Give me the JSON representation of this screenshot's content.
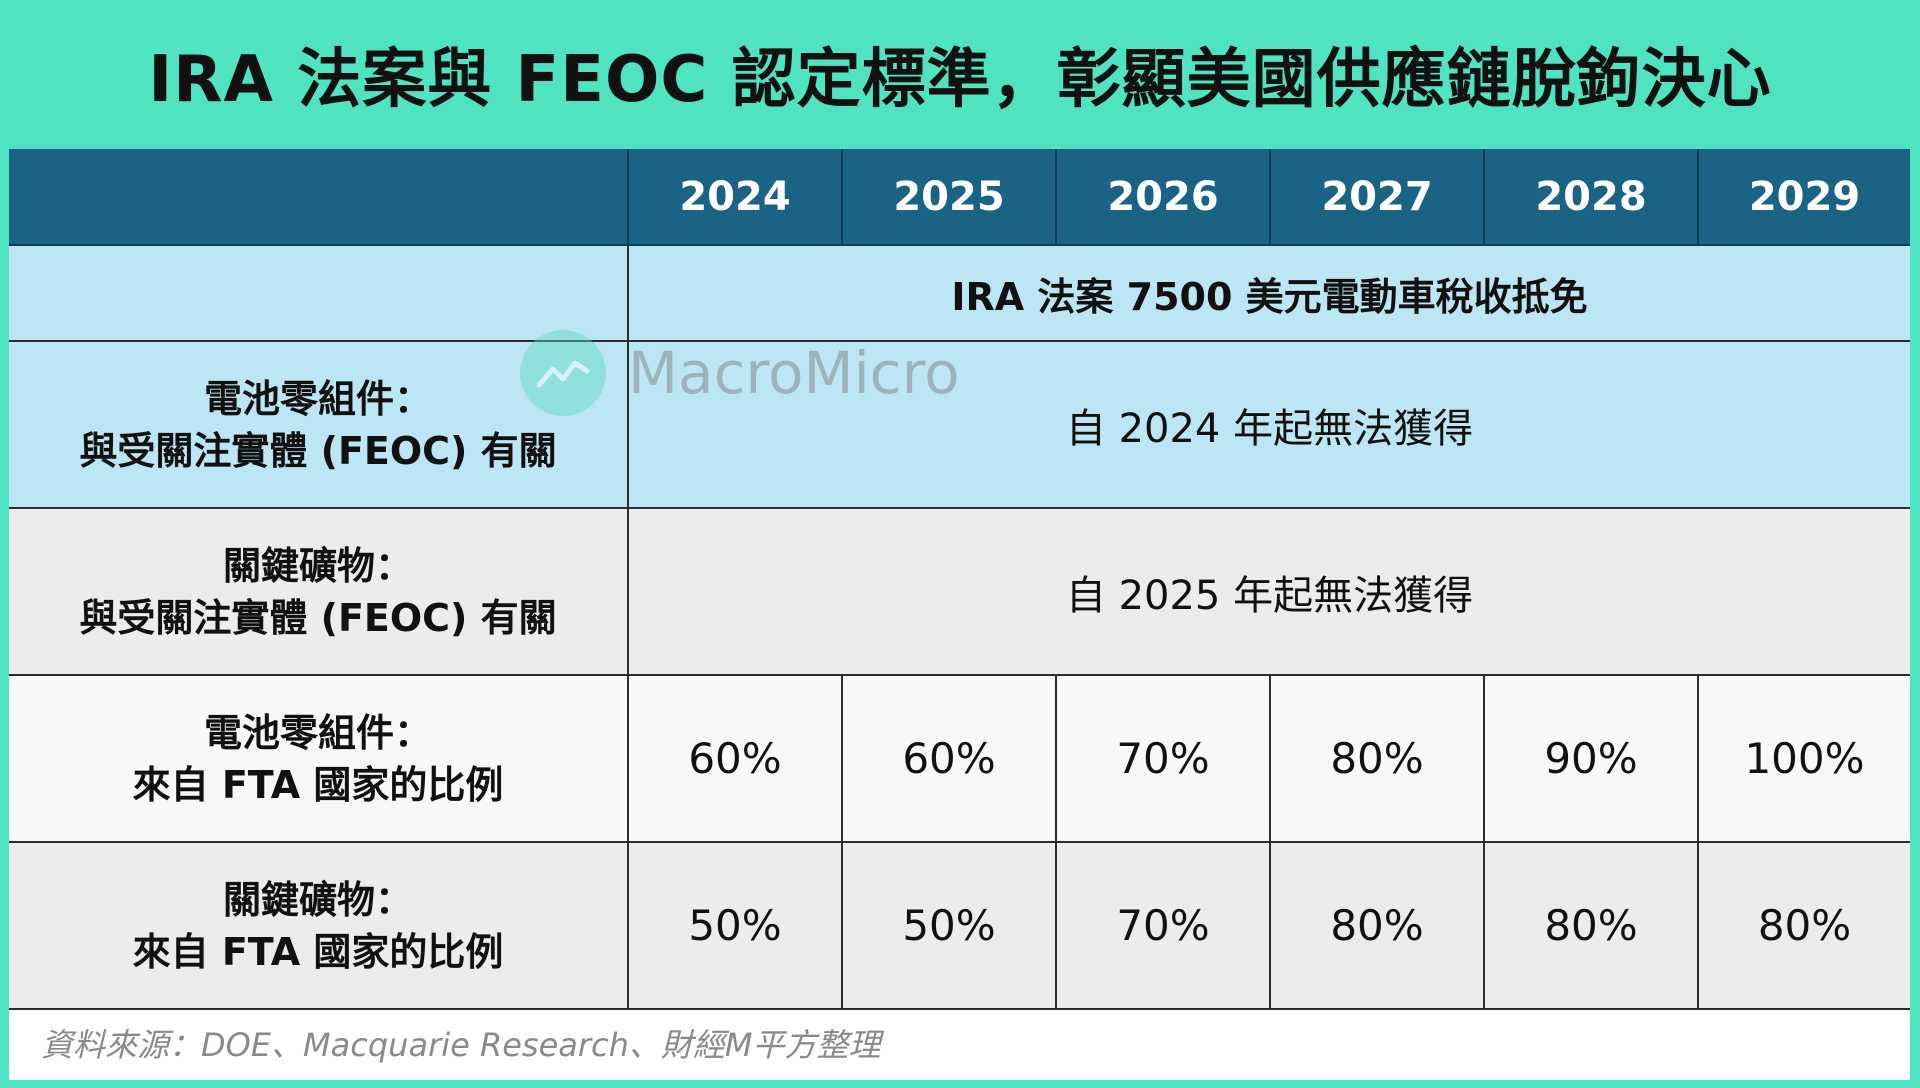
{
  "title": "IRA 法案與 FEOC 認定標準，彰顯美國供應鏈脫鉤決心",
  "table": {
    "years": [
      "2024",
      "2025",
      "2026",
      "2027",
      "2028",
      "2029"
    ],
    "ira_row": "IRA 法案 7500 美元電動車稅收抵免",
    "rows": [
      {
        "label_line1": "電池零組件：",
        "label_line2": "與受關注實體 (FEOC) 有關",
        "span_text": "自 2024 年起無法獲得"
      },
      {
        "label_line1": "關鍵礦物：",
        "label_line2": "與受關注實體 (FEOC) 有關",
        "span_text": "自 2025 年起無法獲得"
      },
      {
        "label_line1": "電池零組件：",
        "label_line2": "來自 FTA 國家的比例",
        "values": [
          "60%",
          "60%",
          "70%",
          "80%",
          "90%",
          "100%"
        ]
      },
      {
        "label_line1": "關鍵礦物：",
        "label_line2": "來自 FTA 國家的比例",
        "values": [
          "50%",
          "50%",
          "70%",
          "80%",
          "80%",
          "80%"
        ]
      }
    ]
  },
  "watermark": "MacroMicro",
  "source": "資料來源：DOE、Macquarie Research、財經M平方整理",
  "colors": {
    "background": "#4fe3c1",
    "header": "#1a6385",
    "light_blue": "#bde6f5",
    "gray": "#ececec"
  }
}
